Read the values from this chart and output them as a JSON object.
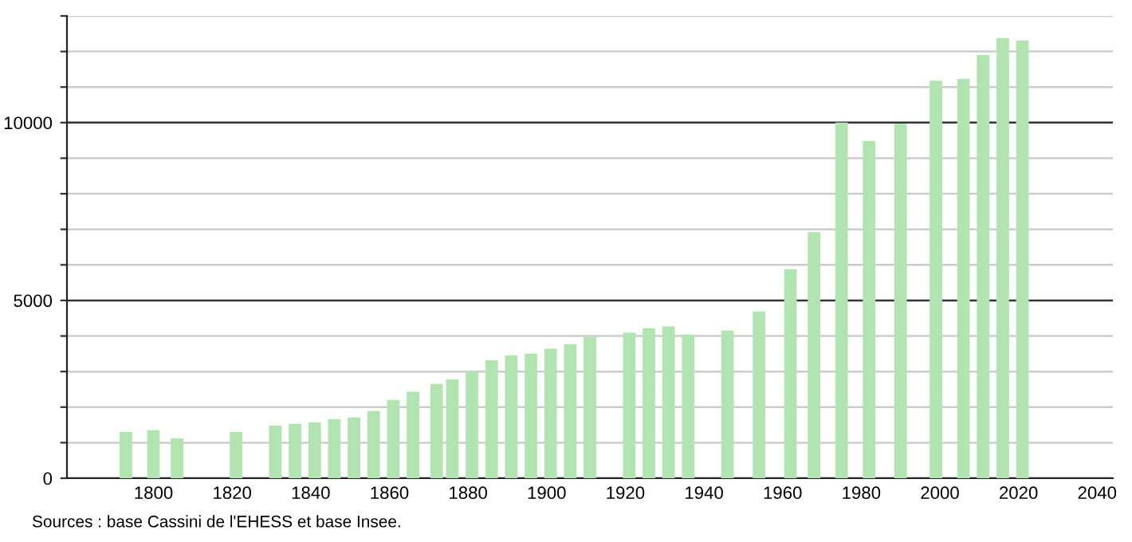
{
  "chart_data": {
    "type": "bar",
    "color": "#b2e4b2",
    "x": [
      1793,
      1800,
      1806,
      1821,
      1831,
      1836,
      1841,
      1846,
      1851,
      1856,
      1861,
      1866,
      1872,
      1876,
      1881,
      1886,
      1891,
      1896,
      1901,
      1906,
      1911,
      1921,
      1926,
      1931,
      1936,
      1946,
      1954,
      1962,
      1968,
      1975,
      1982,
      1990,
      1999,
      2006,
      2011,
      2016,
      2021
    ],
    "values": [
      1300,
      1350,
      1120,
      1300,
      1480,
      1530,
      1570,
      1660,
      1710,
      1890,
      2200,
      2430,
      2650,
      2780,
      3010,
      3320,
      3460,
      3500,
      3640,
      3770,
      3970,
      4090,
      4220,
      4270,
      4040,
      4150,
      4690,
      5880,
      6920,
      10000,
      9480,
      9970,
      11180,
      11230,
      11900,
      12380,
      12310
    ],
    "xlim": [
      1778,
      2044
    ],
    "xticks": [
      1800,
      1820,
      1840,
      1860,
      1880,
      1900,
      1920,
      1940,
      1960,
      1980,
      2000,
      2020,
      2040
    ],
    "ylim": [
      0,
      13000
    ],
    "yticks": [
      0,
      {
        "value": 1000,
        "label": null
      },
      {
        "value": 2000,
        "label": null
      },
      {
        "value": 3000,
        "label": null
      },
      {
        "value": 4000,
        "label": null
      },
      5000,
      {
        "value": 6000,
        "label": null
      },
      {
        "value": 7000,
        "label": null
      },
      {
        "value": 8000,
        "label": null
      },
      {
        "value": 9000,
        "label": null
      },
      10000,
      {
        "value": 11000,
        "label": null
      },
      {
        "value": 12000,
        "label": null
      },
      {
        "value": 13000,
        "label": null
      }
    ],
    "grid": "y",
    "annotations": [
      "Sources : base Cassini de l'EHESS et base Insee."
    ]
  }
}
